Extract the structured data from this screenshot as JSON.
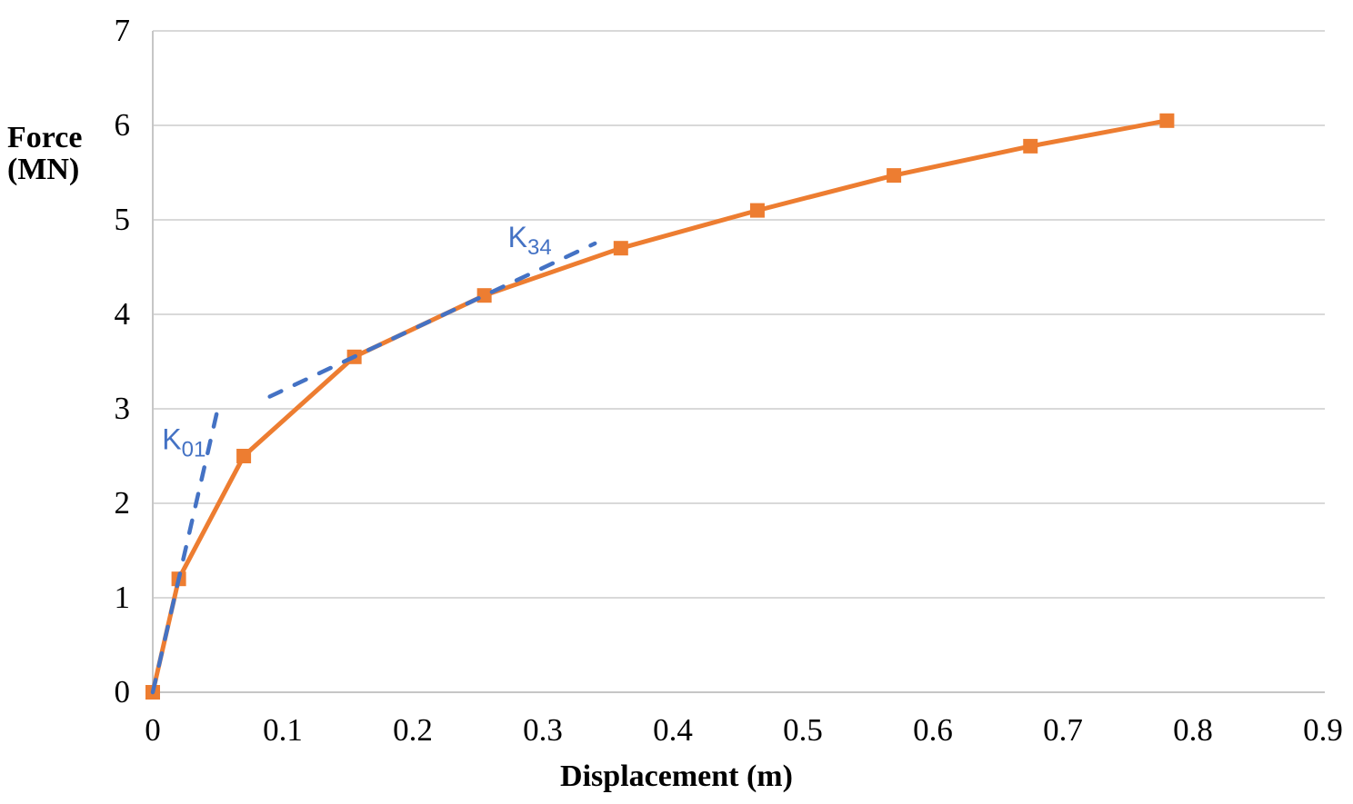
{
  "chart_data": {
    "type": "line",
    "title": "",
    "xlabel": "Displacement (m)",
    "ylabel": "Force (MN)",
    "ylabel_lines": [
      "Force",
      "(MN)"
    ],
    "xlim": [
      0,
      0.9
    ],
    "ylim": [
      0,
      7
    ],
    "x_ticks": [
      0,
      0.1,
      0.2,
      0.3,
      0.4,
      0.5,
      0.6,
      0.7,
      0.8,
      0.9
    ],
    "x_tick_labels": [
      "0",
      "0.1",
      "0.2",
      "0.3",
      "0.4",
      "0.5",
      "0.6",
      "0.7",
      "0.8",
      "0.9"
    ],
    "y_ticks": [
      0,
      1,
      2,
      3,
      4,
      5,
      6,
      7
    ],
    "y_tick_labels": [
      "0",
      "1",
      "2",
      "3",
      "4",
      "5",
      "6",
      "7"
    ],
    "grid": "horizontal",
    "legend": "none",
    "colors": {
      "grid": "#D9D9D9",
      "axis": "#C6C6C6",
      "curve": "#ED7D31",
      "stiffness": "#4472C4",
      "text": "#000000"
    },
    "series": [
      {
        "name": "force-displacement-curve",
        "color": "#ED7D31",
        "style": "solid",
        "marker": "square",
        "points": [
          [
            0,
            0
          ],
          [
            0.02,
            1.2
          ],
          [
            0.07,
            2.5
          ],
          [
            0.155,
            3.55
          ],
          [
            0.255,
            4.2
          ],
          [
            0.36,
            4.7
          ],
          [
            0.465,
            5.1
          ],
          [
            0.57,
            5.47
          ],
          [
            0.675,
            5.78
          ],
          [
            0.78,
            6.05
          ]
        ]
      },
      {
        "name": "k01-stiffness-line",
        "color": "#4472C4",
        "style": "dashed",
        "marker": "none",
        "points": [
          [
            0,
            0
          ],
          [
            0.05,
            3.0
          ]
        ]
      },
      {
        "name": "k34-stiffness-line",
        "color": "#4472C4",
        "style": "dashed",
        "marker": "none",
        "points": [
          [
            0.09,
            3.13
          ],
          [
            0.34,
            4.75
          ]
        ]
      }
    ],
    "annotations": [
      {
        "name": "k01-label",
        "text": "K",
        "sub": "01",
        "x": 0.024,
        "y": 2.57,
        "color": "#4472C4"
      },
      {
        "name": "k34-label",
        "text": "K",
        "sub": "34",
        "x": 0.29,
        "y": 4.71,
        "color": "#4472C4"
      }
    ]
  }
}
